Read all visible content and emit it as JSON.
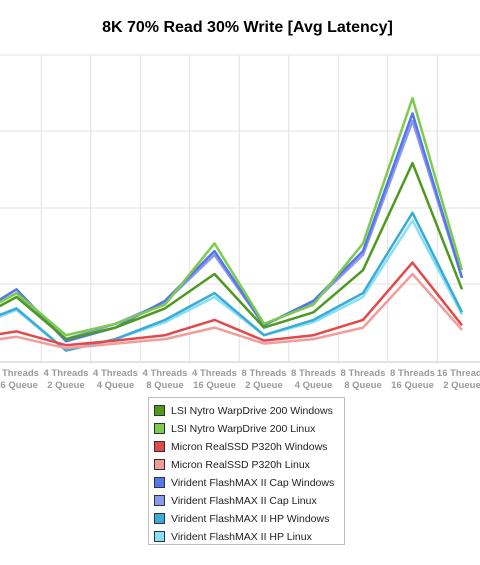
{
  "chart_data": {
    "type": "line",
    "title": "8K 70% Read 30% Write [Avg Latency]",
    "xlabel": "",
    "ylabel": "",
    "grid": true,
    "legend_position": "bottom",
    "visible_x_index_range": [
      0,
      9.4
    ],
    "ylim": [
      0,
      7.5
    ],
    "categories": [
      [
        "1 Threads",
        "16 Queue"
      ],
      [
        "2 Threads",
        "16 Queue"
      ],
      [
        "4 Threads",
        "2 Queue"
      ],
      [
        "4 Threads",
        "4 Queue"
      ],
      [
        "4 Threads",
        "8 Queue"
      ],
      [
        "4 Threads",
        "16 Queue"
      ],
      [
        "8 Threads",
        "2 Queue"
      ],
      [
        "8 Threads",
        "4 Queue"
      ],
      [
        "8 Threads",
        "8 Queue"
      ],
      [
        "8 Threads",
        "16 Queue"
      ],
      [
        "16 Threads",
        "2 Queue"
      ]
    ],
    "series": [
      {
        "name": "LSI Nytro WarpDrive 200 Windows",
        "color": "#4e9a1e",
        "values": [
          0.5,
          0.85,
          0.3,
          0.45,
          0.7,
          1.15,
          0.45,
          0.65,
          1.2,
          2.6,
          0.95
        ]
      },
      {
        "name": "LSI Nytro WarpDrive 200 Linux",
        "color": "#7ccb4a",
        "values": [
          0.55,
          0.9,
          0.35,
          0.5,
          0.75,
          1.55,
          0.5,
          0.75,
          1.55,
          3.45,
          1.2
        ]
      },
      {
        "name": "Micron RealSSD P320h Windows",
        "color": "#e54848",
        "values": [
          0.3,
          0.4,
          0.22,
          0.28,
          0.35,
          0.55,
          0.28,
          0.35,
          0.55,
          1.3,
          0.48
        ]
      },
      {
        "name": "Micron RealSSD P320h Linux",
        "color": "#f29c9c",
        "values": [
          0.24,
          0.33,
          0.18,
          0.24,
          0.3,
          0.45,
          0.24,
          0.3,
          0.45,
          1.15,
          0.42
        ]
      },
      {
        "name": "Virident FlashMAX II Cap Windows",
        "color": "#5577e8",
        "values": [
          0.55,
          0.95,
          0.27,
          0.45,
          0.8,
          1.45,
          0.48,
          0.8,
          1.45,
          3.25,
          1.1
        ]
      },
      {
        "name": "Virident FlashMAX II Cap Linux",
        "color": "#8899ee",
        "values": [
          0.55,
          0.9,
          0.3,
          0.5,
          0.78,
          1.4,
          0.48,
          0.78,
          1.4,
          3.15,
          1.1
        ]
      },
      {
        "name": "Virident FlashMAX II HP Windows",
        "color": "#3aabd8",
        "values": [
          0.45,
          0.7,
          0.15,
          0.3,
          0.55,
          0.9,
          0.35,
          0.55,
          0.9,
          1.95,
          0.65
        ]
      },
      {
        "name": "Virident FlashMAX II HP Linux",
        "color": "#88e0f5",
        "values": [
          0.42,
          0.68,
          0.15,
          0.3,
          0.52,
          0.85,
          0.35,
          0.52,
          0.85,
          1.85,
          0.62
        ]
      }
    ]
  }
}
